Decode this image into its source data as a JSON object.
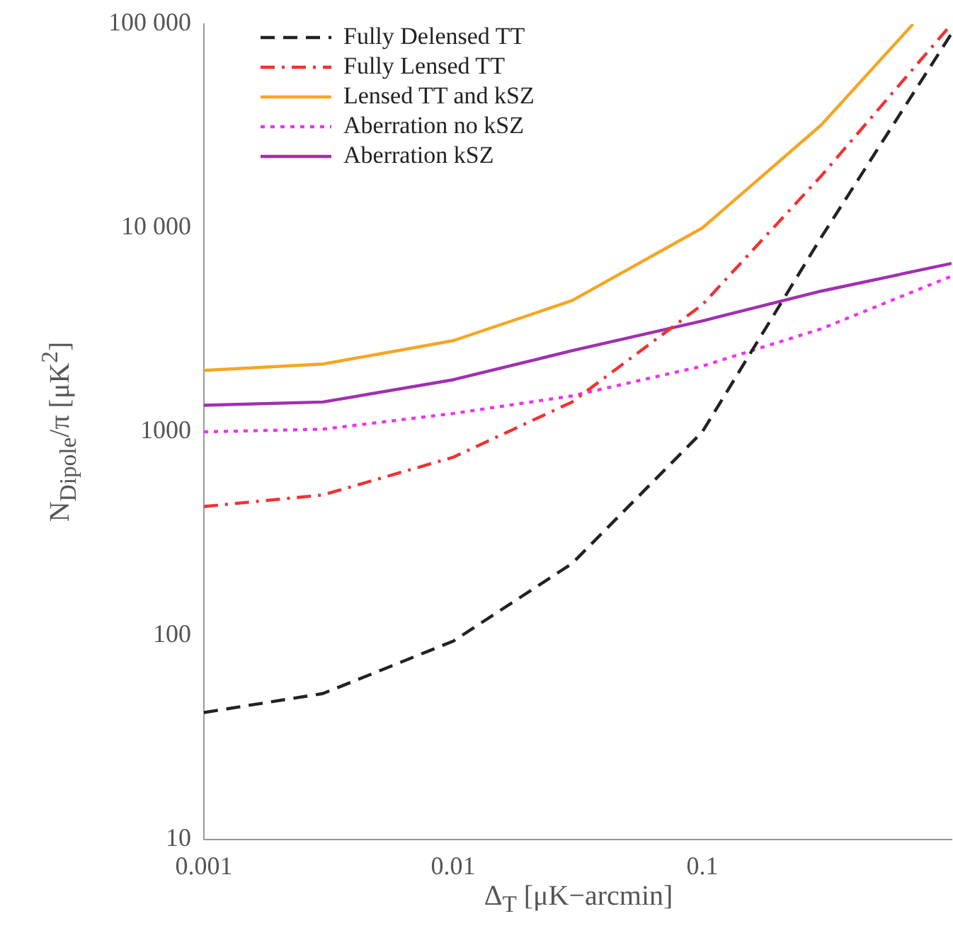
{
  "chart_data": {
    "type": "line",
    "xlabel": "Δ$_{T}$ [μK−arcmin]",
    "ylabel": "N$_{Dipole}$/π [μK$^{2}$]",
    "log": "xy",
    "xlim": [
      0.001,
      1
    ],
    "ylim": [
      10,
      100000
    ],
    "xticks": [
      0.001,
      0.01,
      0.1
    ],
    "yticks": [
      10,
      100,
      1000,
      {
        "value": 10000,
        "label": "10 000"
      },
      {
        "value": 100000,
        "label": "100 000"
      }
    ],
    "grid": false,
    "legend": "top left",
    "marker": "none",
    "x": [
      0.001,
      0.003,
      0.01,
      0.03,
      0.1,
      0.3,
      1
    ],
    "series": [
      {
        "name": "Fully Delensed TT",
        "color": "#222222",
        "line_style": "dashed",
        "values": [
          42,
          52,
          94,
          226,
          1000,
          9000,
          90000
        ]
      },
      {
        "name": "Fully Lensed TT",
        "color": "#ee3333",
        "line_style": "dashdot",
        "values": [
          430,
          490,
          750,
          1400,
          4200,
          18000,
          100000
        ]
      },
      {
        "name": "Lensed TT and kSZ",
        "color": "#f5a623",
        "line_style": "solid",
        "x": [
          0.001,
          0.003,
          0.01,
          0.03,
          0.1,
          0.3,
          0.7
        ],
        "values": [
          2000,
          2150,
          2800,
          4400,
          10000,
          32000,
          100000
        ]
      },
      {
        "name": "Aberration no kSZ",
        "color": "#ee33ee",
        "line_style": "dotted",
        "values": [
          1000,
          1030,
          1230,
          1500,
          2100,
          3200,
          5800
        ]
      },
      {
        "name": "Aberration kSZ",
        "color": "#a030b0",
        "line_style": "solid",
        "values": [
          1350,
          1400,
          1800,
          2500,
          3500,
          4900,
          6700
        ]
      }
    ]
  }
}
